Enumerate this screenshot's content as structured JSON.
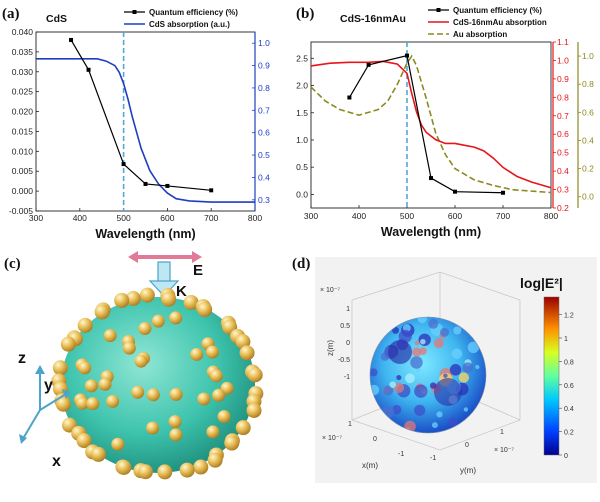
{
  "colors": {
    "qe": "#000000",
    "cds_abs": "#1f3fbf",
    "hybrid_abs": "#e8141a",
    "au_abs": "#8b8a1f",
    "marker_line": "#4fa8d8",
    "blue_axis": "#1f3fbf",
    "red_axis": "#e8141a",
    "olive_axis": "#8b8a1f",
    "sphere": "#3ec4ae",
    "gold": "#e8b84a",
    "arrow_blue": "#4aa4cc",
    "arrow_pink": "#e07a96"
  },
  "panel_labels": {
    "a": "(a)",
    "b": "(b)",
    "c": "(c)",
    "d": "(d)"
  },
  "chart_data": [
    {
      "type": "line",
      "title": "CdS",
      "xlabel": "Wavelength (nm)",
      "xlim": [
        300,
        800
      ],
      "xticks": [
        "300",
        "400",
        "500",
        "600",
        "700",
        "800"
      ],
      "ylim_left": [
        -0.005,
        0.04
      ],
      "yticks_left": [
        "-0.005",
        "0.000",
        "0.005",
        "0.010",
        "0.015",
        "0.020",
        "0.025",
        "0.030",
        "0.035",
        "0.040"
      ],
      "ylim_right": [
        0.25,
        1.05
      ],
      "yticks_right": [
        "0.3",
        "0.4",
        "0.5",
        "0.6",
        "0.7",
        "0.8",
        "0.9",
        "1.0"
      ],
      "marker_line_x": 500,
      "series": [
        {
          "name": "Quantum efficiency (%)",
          "axis": "left",
          "markers": true,
          "x": [
            380,
            420,
            500,
            550,
            600,
            700
          ],
          "y": [
            0.038,
            0.0305,
            0.0068,
            0.0018,
            0.0013,
            0.0002
          ]
        },
        {
          "name": "CdS absorption (a.u.)",
          "axis": "right",
          "markers": false,
          "x": [
            300,
            350,
            400,
            440,
            460,
            480,
            490,
            500,
            510,
            520,
            540,
            560,
            580,
            600,
            620,
            650,
            700,
            750,
            800
          ],
          "y": [
            0.93,
            0.93,
            0.93,
            0.93,
            0.92,
            0.9,
            0.87,
            0.82,
            0.75,
            0.67,
            0.53,
            0.43,
            0.37,
            0.33,
            0.305,
            0.295,
            0.29,
            0.29,
            0.29
          ]
        }
      ],
      "legend": "top-right"
    },
    {
      "type": "line",
      "title": "CdS-16nmAu",
      "xlabel": "Wavelength (nm)",
      "xlim": [
        300,
        800
      ],
      "xticks": [
        "300",
        "400",
        "500",
        "600",
        "700",
        "800"
      ],
      "ylim_left": [
        -0.25,
        2.8
      ],
      "yticks_left": [
        "0.0",
        "0.5",
        "1.0",
        "1.5",
        "2.0",
        "2.5"
      ],
      "ylim_red": [
        0.2,
        1.1
      ],
      "yticks_red": [
        "0.2",
        "0.3",
        "0.4",
        "0.5",
        "0.6",
        "0.7",
        "0.8",
        "0.9",
        "1.0",
        "1.1"
      ],
      "ylim_olive": [
        -0.08,
        1.1
      ],
      "yticks_olive": [
        "0.0",
        "0.2",
        "0.4",
        "0.6",
        "0.8",
        "1.0"
      ],
      "marker_line_x": 500,
      "series": [
        {
          "name": "Quantum efficiency (%)",
          "axis": "left",
          "markers": true,
          "x": [
            380,
            420,
            500,
            550,
            600,
            700
          ],
          "y": [
            1.78,
            2.38,
            2.55,
            0.3,
            0.05,
            0.03
          ]
        },
        {
          "name": "CdS-16nmAu absorption",
          "axis": "red",
          "markers": false,
          "x": [
            300,
            340,
            380,
            420,
            450,
            480,
            500,
            510,
            520,
            530,
            540,
            560,
            580,
            600,
            620,
            640,
            660,
            680,
            700,
            730,
            760,
            800
          ],
          "y": [
            0.97,
            0.985,
            0.99,
            0.99,
            0.995,
            0.98,
            0.93,
            0.82,
            0.72,
            0.65,
            0.61,
            0.57,
            0.55,
            0.55,
            0.54,
            0.53,
            0.51,
            0.47,
            0.42,
            0.37,
            0.34,
            0.31
          ]
        },
        {
          "name": "Au absorption",
          "axis": "olive",
          "markers": false,
          "dashed": true,
          "x": [
            300,
            330,
            360,
            400,
            440,
            460,
            480,
            500,
            510,
            520,
            540,
            560,
            580,
            600,
            640,
            680,
            720,
            760,
            800
          ],
          "y": [
            0.78,
            0.68,
            0.62,
            0.58,
            0.62,
            0.68,
            0.8,
            0.95,
            1.0,
            0.93,
            0.7,
            0.45,
            0.3,
            0.2,
            0.12,
            0.08,
            0.05,
            0.04,
            0.03
          ]
        }
      ],
      "legend": "top-right"
    },
    {
      "type": "heatmap",
      "colorbar_title": "log|E²|",
      "colorbar_ticks": [
        "0",
        "0.2",
        "0.4",
        "0.6",
        "0.8",
        "1",
        "1.2"
      ],
      "colorbar_range": [
        0,
        1.35
      ],
      "axes": {
        "z_label": "z(m)",
        "x_label": "x(m)",
        "y_label": "y(m)",
        "scale": "× 10⁻⁷",
        "z_ticks": [
          "1",
          "0.5",
          "0",
          "-0.5",
          "-1"
        ],
        "x_ticks": [
          "1",
          "0",
          "-1"
        ],
        "y_ticks": [
          "-1",
          "0",
          "1"
        ]
      }
    }
  ],
  "schematic": {
    "k_label": "K",
    "e_label": "E",
    "axis_z": "z",
    "axis_y": "y",
    "axis_x": "x"
  }
}
